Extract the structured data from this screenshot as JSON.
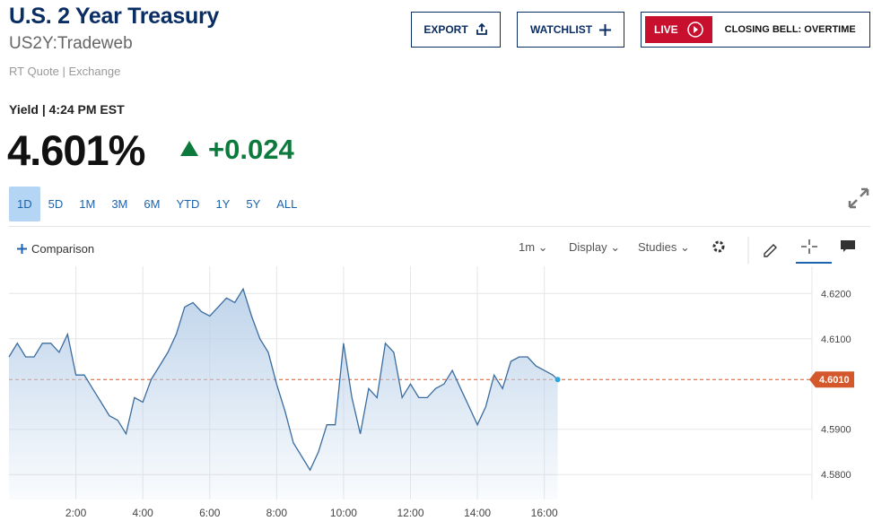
{
  "header": {
    "title": "U.S. 2 Year Treasury",
    "symbol": "US2Y:Tradeweb",
    "source": "RT Quote | Exchange"
  },
  "buttons": {
    "export": "EXPORT",
    "watchlist": "WATCHLIST",
    "live": "LIVE",
    "live_show": "CLOSING BELL: OVERTIME"
  },
  "quote": {
    "label": "Yield | 4:24 PM EST",
    "value": "4.601%",
    "change": "+0.024"
  },
  "ranges": [
    "1D",
    "5D",
    "1M",
    "3M",
    "6M",
    "YTD",
    "1Y",
    "5Y",
    "ALL"
  ],
  "toolbar": {
    "comparison": "Comparison",
    "interval": "1m",
    "display": "Display",
    "studies": "Studies"
  },
  "chart_data": {
    "type": "line",
    "color": "#3a6c9e",
    "fill": "#bcd2ea",
    "grid": true,
    "x": [
      0,
      0.25,
      0.5,
      0.75,
      1,
      1.25,
      1.5,
      1.75,
      2,
      2.25,
      2.5,
      2.75,
      3,
      3.25,
      3.5,
      3.75,
      4,
      4.25,
      4.5,
      4.75,
      5,
      5.25,
      5.5,
      5.75,
      6,
      6.25,
      6.5,
      6.75,
      7,
      7.25,
      7.5,
      7.75,
      8,
      8.25,
      8.5,
      8.75,
      9,
      9.25,
      9.5,
      9.75,
      10,
      10.25,
      10.5,
      10.75,
      11,
      11.25,
      11.5,
      11.75,
      12,
      12.25,
      12.5,
      12.75,
      13,
      13.25,
      13.5,
      13.75,
      14,
      14.25,
      14.5,
      14.75,
      15,
      15.25,
      15.5,
      15.75,
      16,
      16.25,
      16.4
    ],
    "values": [
      4.606,
      4.609,
      4.606,
      4.606,
      4.609,
      4.609,
      4.607,
      4.611,
      4.602,
      4.602,
      4.599,
      4.596,
      4.593,
      4.592,
      4.589,
      4.597,
      4.596,
      4.601,
      4.604,
      4.607,
      4.611,
      4.617,
      4.618,
      4.616,
      4.615,
      4.617,
      4.619,
      4.618,
      4.621,
      4.615,
      4.61,
      4.607,
      4.6,
      4.594,
      4.587,
      4.584,
      4.581,
      4.585,
      4.591,
      4.591,
      4.609,
      4.597,
      4.589,
      4.599,
      4.597,
      4.609,
      4.607,
      4.597,
      4.6,
      4.597,
      4.597,
      4.599,
      4.6,
      4.603,
      4.599,
      4.595,
      4.591,
      4.595,
      4.602,
      4.599,
      4.605,
      4.606,
      4.606,
      4.604,
      4.603,
      4.602,
      4.601
    ],
    "xlim": [
      0,
      24
    ],
    "xticks": [
      {
        "value": 2,
        "label": "2:00"
      },
      {
        "value": 4,
        "label": "4:00"
      },
      {
        "value": 6,
        "label": "6:00"
      },
      {
        "value": 8,
        "label": "8:00"
      },
      {
        "value": 10,
        "label": "10:00"
      },
      {
        "value": 12,
        "label": "12:00"
      },
      {
        "value": 14,
        "label": "14:00"
      },
      {
        "value": 16,
        "label": "16:00"
      }
    ],
    "ylim": [
      4.5745,
      4.626
    ],
    "yticks": [
      {
        "value": 4.58,
        "label": "4.5800"
      },
      {
        "value": 4.59,
        "label": "4.5900"
      },
      {
        "value": 4.61,
        "label": "4.6100"
      },
      {
        "value": 4.62,
        "label": "4.6200"
      }
    ],
    "reference_line": {
      "value": 4.601,
      "label": "4.6010",
      "color": "#d4582b"
    }
  }
}
